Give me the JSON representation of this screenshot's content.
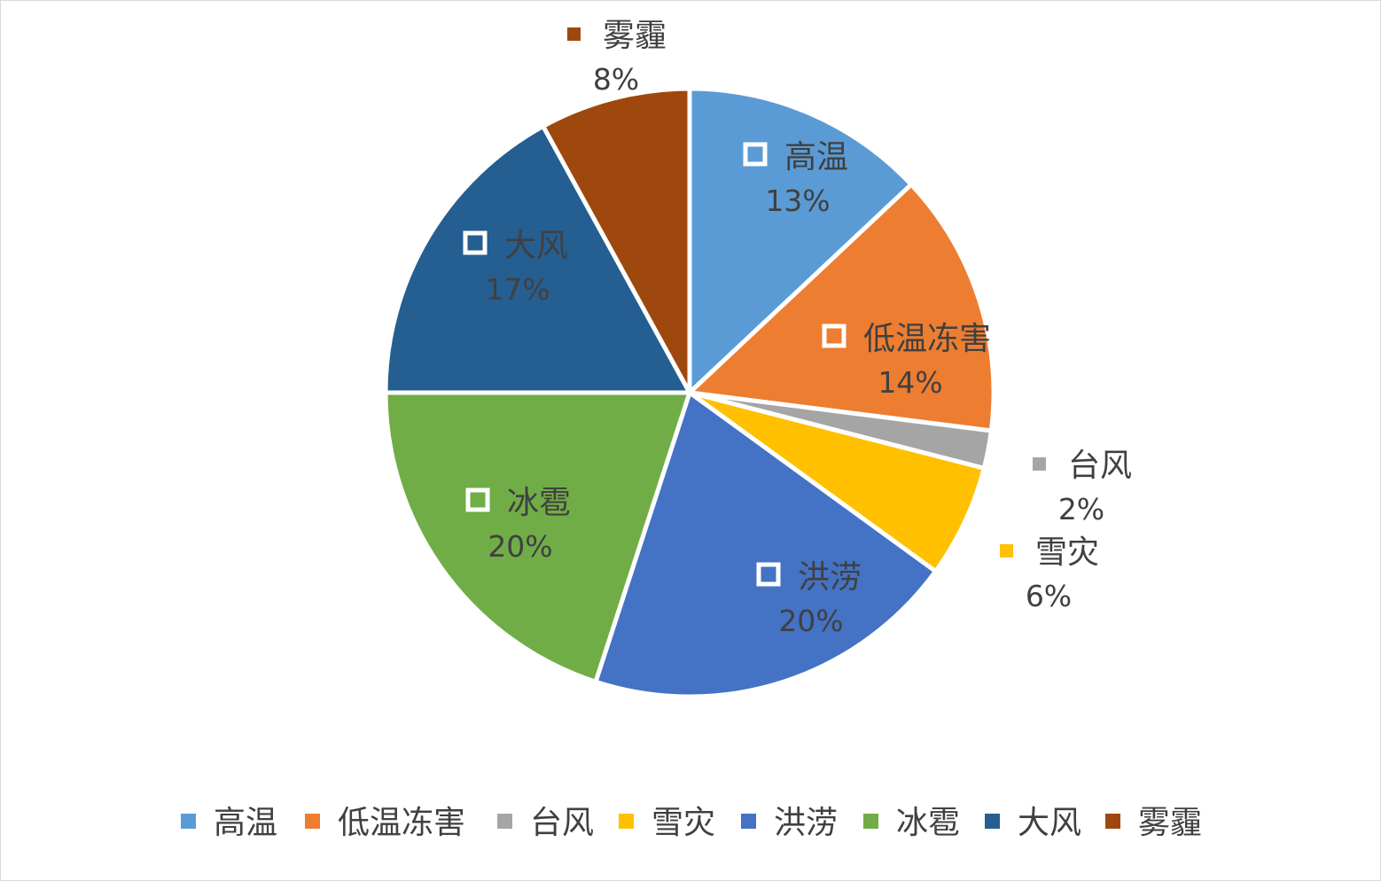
{
  "chart_data": {
    "type": "pie",
    "title": "",
    "series": [
      {
        "name": "",
        "categories": [
          "高温",
          "低温冻害",
          "台风",
          "雪灾",
          "洪涝",
          "冰雹",
          "大风",
          "雾霾"
        ],
        "values": [
          13,
          14,
          2,
          6,
          20,
          20,
          17,
          8
        ],
        "labels": [
          "13%",
          "14%",
          "2%",
          "6%",
          "20%",
          "20%",
          "17%",
          "8%"
        ],
        "colors": [
          "#5b9bd5",
          "#ed7d31",
          "#a5a5a5",
          "#ffc000",
          "#4472c4",
          "#70ad47",
          "#255e91",
          "#9e480e"
        ]
      }
    ],
    "data_labels": "category and percentage",
    "start_angle": "12 o'clock, clockwise",
    "legend_position": "bottom"
  }
}
